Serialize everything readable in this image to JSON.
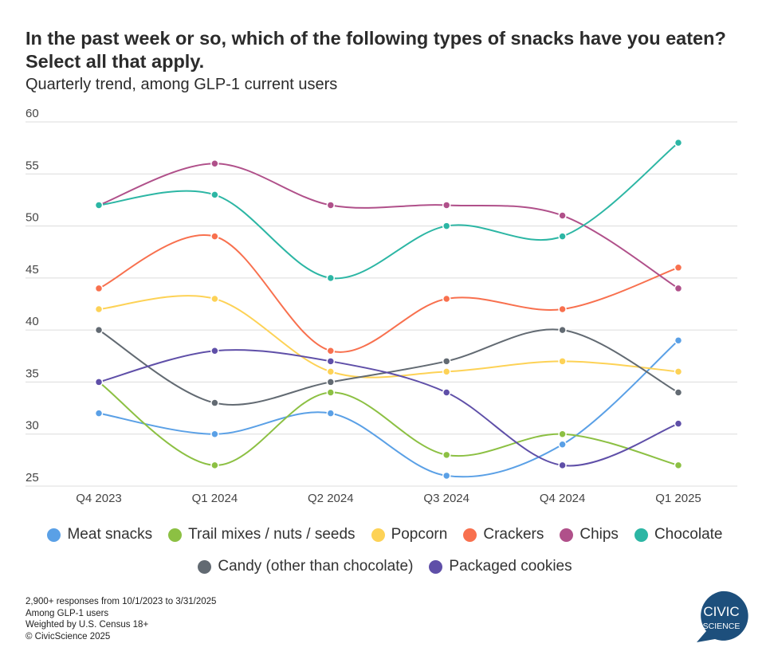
{
  "chart_data": {
    "type": "line",
    "title": "In the past week or so, which of the following types of snacks have you eaten? Select all that apply.",
    "subtitle": "Quarterly trend, among GLP-1 current users",
    "categories": [
      "Q4 2023",
      "Q1 2024",
      "Q2 2024",
      "Q3 2024",
      "Q4 2024",
      "Q1 2025"
    ],
    "yticks": [
      "25",
      "30",
      "35",
      "40",
      "45",
      "50",
      "55",
      "60"
    ],
    "ylim": [
      25,
      60
    ],
    "grid": true,
    "legend_position": "bottom",
    "series": [
      {
        "name": "Meat snacks",
        "color": "#5aa0e6",
        "values": [
          32,
          30,
          32,
          26,
          29,
          39
        ]
      },
      {
        "name": "Trail mixes / nuts / seeds",
        "color": "#8cc043",
        "values": [
          35,
          27,
          34,
          28,
          30,
          27
        ]
      },
      {
        "name": "Popcorn",
        "color": "#fdd256",
        "values": [
          42,
          43,
          36,
          36,
          37,
          36
        ]
      },
      {
        "name": "Crackers",
        "color": "#f8704e",
        "values": [
          44,
          49,
          38,
          43,
          42,
          46
        ]
      },
      {
        "name": "Chips",
        "color": "#b0508a",
        "values": [
          52,
          56,
          52,
          52,
          51,
          44
        ]
      },
      {
        "name": "Chocolate",
        "color": "#2cb6a4",
        "values": [
          52,
          53,
          45,
          50,
          49,
          58
        ]
      },
      {
        "name": "Candy (other than chocolate)",
        "color": "#626a72",
        "values": [
          40,
          33,
          35,
          37,
          40,
          34
        ]
      },
      {
        "name": "Packaged cookies",
        "color": "#5f4fa8",
        "values": [
          35,
          38,
          37,
          34,
          27,
          31
        ]
      }
    ]
  },
  "footer": [
    "2,900+ responses from 10/1/2023 to 3/31/2025",
    "Among GLP-1 users",
    "Weighted by U.S. Census 18+",
    "© CivicScience 2025"
  ],
  "logo": {
    "line1": "CIVIC",
    "line2": "SCIENCE",
    "color": "#1d4f7c"
  }
}
